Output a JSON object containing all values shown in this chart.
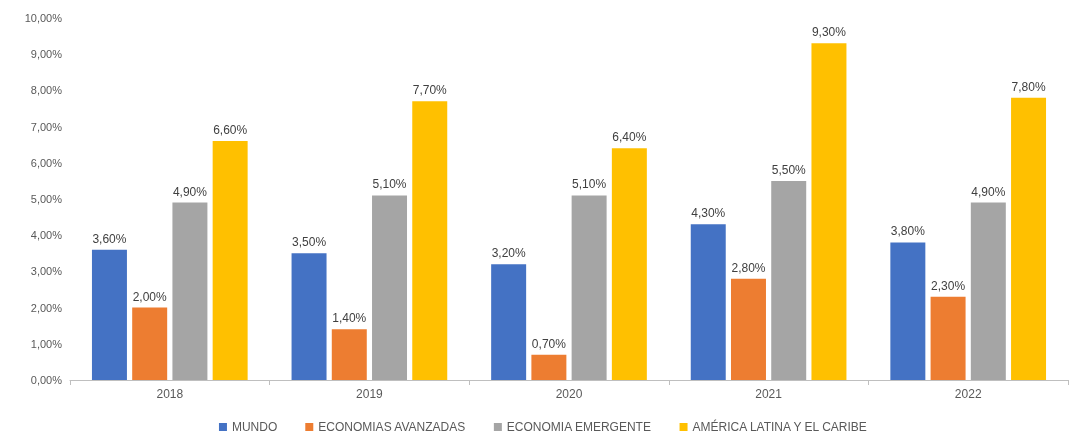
{
  "chart_data": {
    "type": "bar",
    "categories": [
      "2018",
      "2019",
      "2020",
      "2021",
      "2022"
    ],
    "series": [
      {
        "name": "MUNDO",
        "color": "#4472c4",
        "values": [
          3.6,
          3.5,
          3.2,
          4.3,
          3.8
        ],
        "value_labels": [
          "3,60%",
          "3,50%",
          "3,20%",
          "4,30%",
          "3,80%"
        ]
      },
      {
        "name": "ECONOMIAS AVANZADAS",
        "color": "#ed7d31",
        "values": [
          2.0,
          1.4,
          0.7,
          2.8,
          2.3
        ],
        "value_labels": [
          "2,00%",
          "1,40%",
          "0,70%",
          "2,80%",
          "2,30%"
        ]
      },
      {
        "name": "ECONOMIA EMERGENTE",
        "color": "#a5a5a5",
        "values": [
          4.9,
          5.1,
          5.1,
          5.5,
          4.9
        ],
        "value_labels": [
          "4,90%",
          "5,10%",
          "5,10%",
          "5,50%",
          "4,90%"
        ]
      },
      {
        "name": "AMÉRICA LATINA Y EL CARIBE",
        "color": "#ffc000",
        "values": [
          6.6,
          7.7,
          6.4,
          9.3,
          7.8
        ],
        "value_labels": [
          "6,60%",
          "7,70%",
          "6,40%",
          "9,30%",
          "7,80%"
        ]
      }
    ],
    "ylim": [
      0,
      10
    ],
    "yticks": [
      {
        "value": 0,
        "label": "0,00%"
      },
      {
        "value": 1,
        "label": "1,00%"
      },
      {
        "value": 2,
        "label": "2,00%"
      },
      {
        "value": 3,
        "label": "3,00%"
      },
      {
        "value": 4,
        "label": "4,00%"
      },
      {
        "value": 5,
        "label": "5,00%"
      },
      {
        "value": 6,
        "label": "6,00%"
      },
      {
        "value": 7,
        "label": "7,00%"
      },
      {
        "value": 8,
        "label": "8,00%"
      },
      {
        "value": 9,
        "label": "9,00%"
      },
      {
        "value": 10,
        "label": "10,00%"
      }
    ],
    "grid": false,
    "legend": "bottom"
  }
}
